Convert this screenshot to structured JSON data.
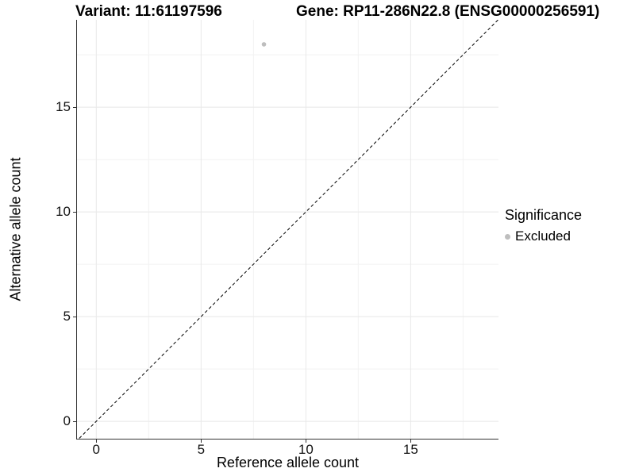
{
  "chart_data": {
    "type": "scatter",
    "title_left": "Variant: 11:61197596",
    "title_right": "Gene: RP11-286N22.8 (ENSG00000256591)",
    "xlabel": "Reference allele count",
    "ylabel": "Alternative allele count",
    "xlim": [
      -0.92,
      19.19
    ],
    "ylim": [
      -0.83,
      19.17
    ],
    "x_ticks": [
      0,
      5,
      10,
      15
    ],
    "y_ticks": [
      0,
      5,
      10,
      15
    ],
    "x_minor": [
      2.5,
      7.5,
      12.5,
      17.5
    ],
    "y_minor": [
      2.5,
      7.5,
      12.5,
      17.5
    ],
    "grid": {
      "major": "#e8e8e8",
      "minor": "#f2f2f2"
    },
    "axis_color": "#333333",
    "identity_line": {
      "style": "dashed",
      "from": [
        -1,
        -1
      ],
      "to": [
        19.6,
        19.6
      ],
      "color": "#000000"
    },
    "points": [
      {
        "x": 8,
        "y": 18,
        "significance": "Excluded",
        "color": "#bebebe",
        "radius": 2.8
      }
    ],
    "legend": {
      "title": "Significance",
      "position": "right",
      "items": [
        {
          "label": "Excluded",
          "color": "#bebebe"
        }
      ]
    }
  }
}
